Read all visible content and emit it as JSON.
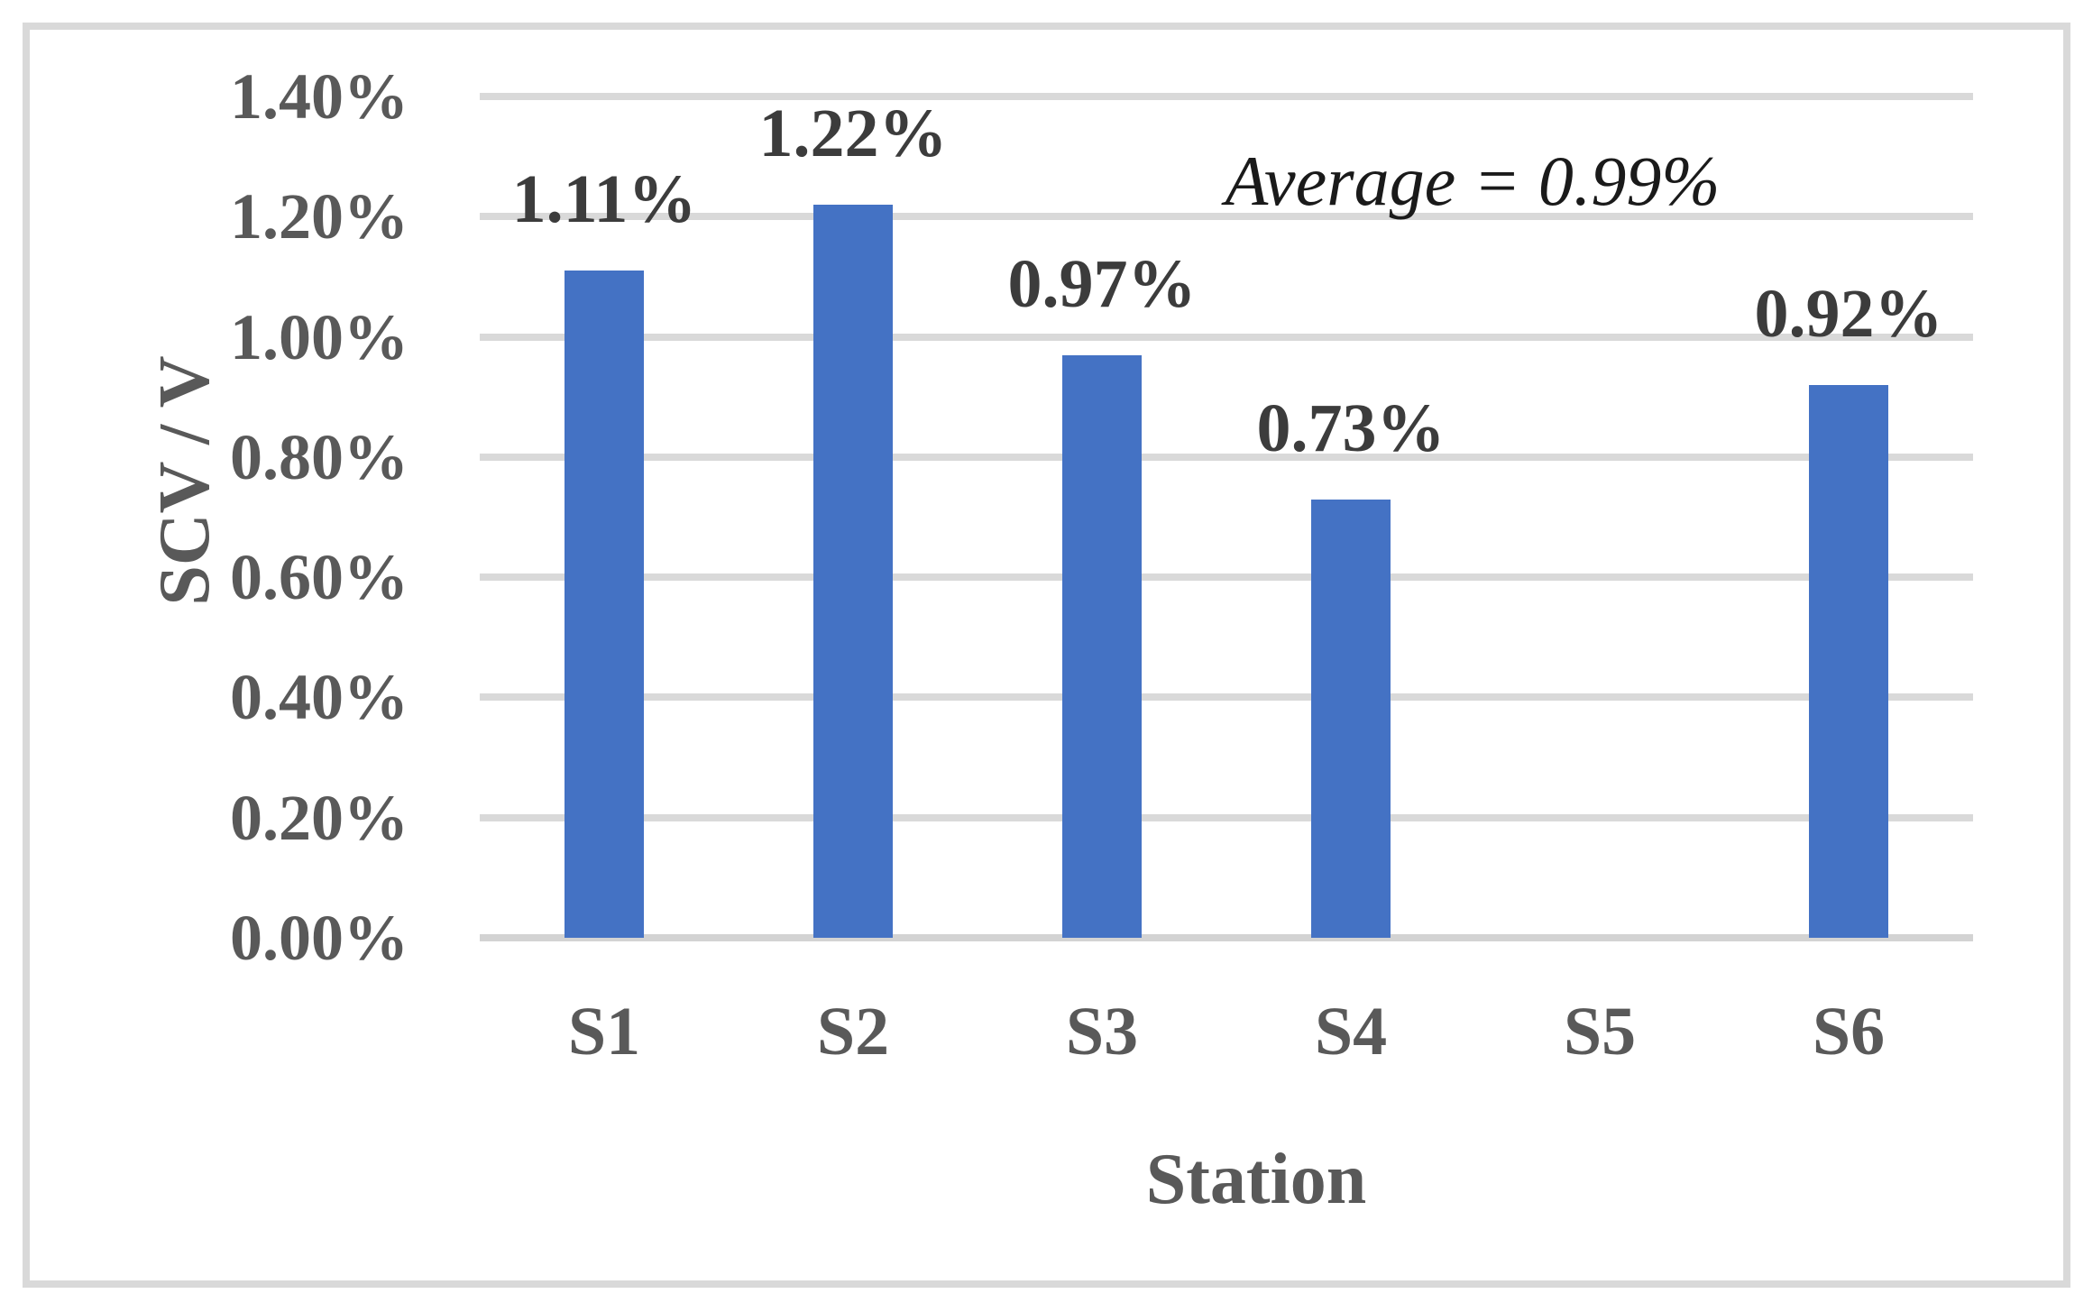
{
  "chart_data": {
    "type": "bar",
    "categories": [
      "S1",
      "S2",
      "S3",
      "S4",
      "S5",
      "S6"
    ],
    "values": [
      1.11,
      1.22,
      0.97,
      0.73,
      null,
      0.92
    ],
    "data_labels": [
      "1.11%",
      "1.22%",
      "0.97%",
      "0.73%",
      null,
      "0.92%"
    ],
    "series_name": "SCV / V by Station",
    "xlabel": "Station",
    "ylabel": "SCV / V",
    "annotation": "Average = 0.99%",
    "y_axis": {
      "min": 0,
      "max": 1.4,
      "step": 0.2,
      "tick_labels": [
        "0.00%",
        "0.20%",
        "0.40%",
        "0.60%",
        "0.80%",
        "1.00%",
        "1.20%",
        "1.40%"
      ]
    },
    "grid": "horizontal",
    "legend": "none",
    "bar_color": "#4472C4",
    "gridline_color": "#D9D9D9",
    "tick_text_color": "#595959",
    "data_label_color": "#3C3C3C",
    "frame_color": "#D9D9D9"
  }
}
